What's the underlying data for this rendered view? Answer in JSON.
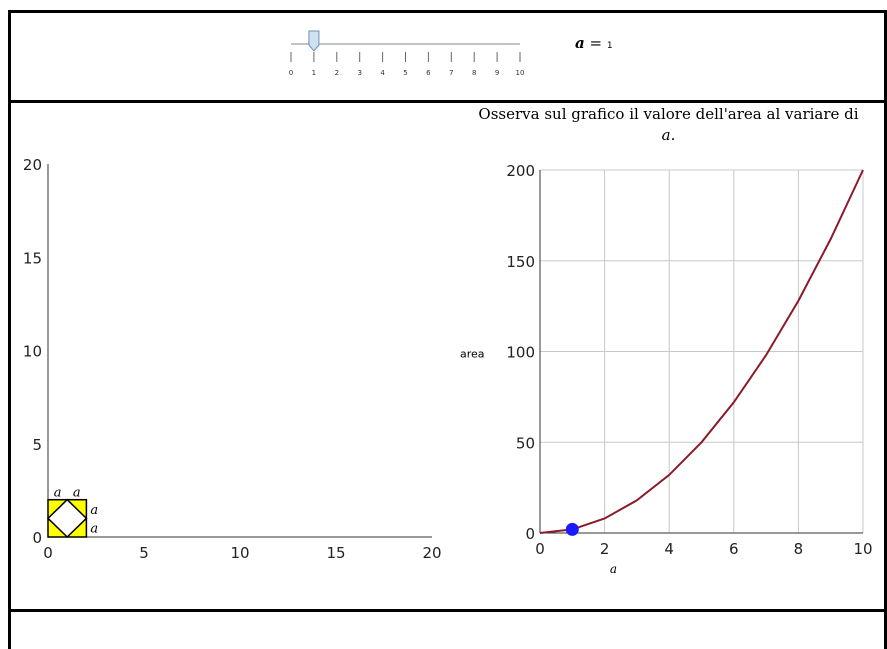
{
  "slider": {
    "min": 0,
    "max": 10,
    "value": 1,
    "ticks": [
      "0",
      "1",
      "2",
      "3",
      "4",
      "5",
      "6",
      "7",
      "8",
      "9",
      "10"
    ]
  },
  "param": {
    "symbol": "a",
    "equals": "=",
    "value_text": "1"
  },
  "colors": {
    "shape_fill": "#ffff00",
    "curve": "#8b1a2b",
    "point": "#1a1aff",
    "grid": "#c8c8c8",
    "panel_border": "#000000"
  },
  "left_plot": {
    "x_ticks": [
      "0",
      "5",
      "10",
      "15",
      "20"
    ],
    "y_ticks": [
      "0",
      "5",
      "10",
      "15",
      "20"
    ],
    "xlim": [
      0,
      20
    ],
    "ylim": [
      0,
      20
    ],
    "labels": {
      "top1": "a",
      "top2": "a",
      "right1": "a",
      "right2": "a"
    }
  },
  "right_panel": {
    "prompt_line1": "Osserva sul grafico il valore dell'area al variare di",
    "prompt_line2": "a."
  },
  "chart_data": {
    "type": "line",
    "xlabel": "a",
    "ylabel": "area",
    "xlim": [
      0,
      10
    ],
    "ylim": [
      0,
      200
    ],
    "x_ticks": [
      "0",
      "2",
      "4",
      "6",
      "8",
      "10"
    ],
    "y_ticks": [
      "0",
      "50",
      "100",
      "150",
      "200"
    ],
    "grid": true,
    "series": [
      {
        "x": [
          0,
          1,
          2,
          3,
          4,
          5,
          6,
          7,
          8,
          9,
          10
        ],
        "y": [
          0,
          2,
          8,
          18,
          32,
          50,
          72,
          98,
          128,
          162,
          200
        ]
      }
    ],
    "highlight_point": {
      "x": 1,
      "y": 2
    }
  }
}
